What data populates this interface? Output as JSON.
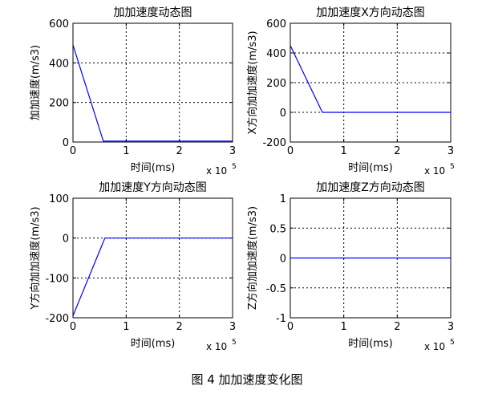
{
  "caption": "图 4  加加速度变化图",
  "chart_data": [
    {
      "type": "line",
      "title": "加加速度动态图",
      "xlabel": "时间(ms)",
      "ylabel": "加加速度(m/s3)",
      "x_exponent_label": "x 10",
      "x_exponent": "5",
      "xlim": [
        0,
        3
      ],
      "ylim": [
        0,
        600
      ],
      "xticks": [
        0,
        1,
        2,
        3
      ],
      "yticks": [
        0,
        200,
        400,
        600
      ],
      "xtick_labels": [
        "0",
        "1",
        "2",
        "3"
      ],
      "ytick_labels": [
        "0",
        "200",
        "400",
        "600"
      ],
      "grid": true,
      "color": "#0000ff",
      "series": [
        {
          "x": [
            0,
            0.57,
            3
          ],
          "y": [
            490,
            5,
            5
          ]
        }
      ]
    },
    {
      "type": "line",
      "title": "加加速度X方向动态图",
      "xlabel": "时间(ms)",
      "ylabel": "X方向加加速度(m/s3)",
      "x_exponent_label": "x 10",
      "x_exponent": "5",
      "xlim": [
        0,
        3
      ],
      "ylim": [
        -200,
        600
      ],
      "xticks": [
        0,
        1,
        2,
        3
      ],
      "yticks": [
        -200,
        0,
        200,
        400,
        600
      ],
      "xtick_labels": [
        "0",
        "1",
        "2",
        "3"
      ],
      "ytick_labels": [
        "-200",
        "0",
        "200",
        "400",
        "600"
      ],
      "grid": true,
      "color": "#0000ff",
      "series": [
        {
          "x": [
            0,
            0.6,
            3
          ],
          "y": [
            450,
            0,
            0
          ]
        }
      ]
    },
    {
      "type": "line",
      "title": "加加速度Y方向动态图",
      "xlabel": "时间(ms)",
      "ylabel": "Y方向加加速度(m/s3)",
      "x_exponent_label": "x 10",
      "x_exponent": "5",
      "xlim": [
        0,
        3
      ],
      "ylim": [
        -200,
        100
      ],
      "xticks": [
        0,
        1,
        2,
        3
      ],
      "yticks": [
        -200,
        -100,
        0,
        100
      ],
      "xtick_labels": [
        "0",
        "1",
        "2",
        "3"
      ],
      "ytick_labels": [
        "-200",
        "-100",
        "0",
        "100"
      ],
      "grid": true,
      "color": "#0000ff",
      "series": [
        {
          "x": [
            0,
            0.6,
            3
          ],
          "y": [
            -195,
            0,
            0
          ]
        }
      ]
    },
    {
      "type": "line",
      "title": "加加速度Z方向动态图",
      "xlabel": "时间(ms)",
      "ylabel": "Z方向加加速度(m/s3)",
      "x_exponent_label": "x 10",
      "x_exponent": "5",
      "xlim": [
        0,
        3
      ],
      "ylim": [
        -1,
        1
      ],
      "xticks": [
        0,
        1,
        2,
        3
      ],
      "yticks": [
        -1,
        -0.5,
        0,
        0.5,
        1
      ],
      "xtick_labels": [
        "0",
        "1",
        "2",
        "3"
      ],
      "ytick_labels": [
        "-1",
        "-0.5",
        "0",
        "0.5",
        "1"
      ],
      "grid": true,
      "color": "#0000ff",
      "series": [
        {
          "x": [
            0,
            3
          ],
          "y": [
            0,
            0
          ]
        }
      ]
    }
  ]
}
